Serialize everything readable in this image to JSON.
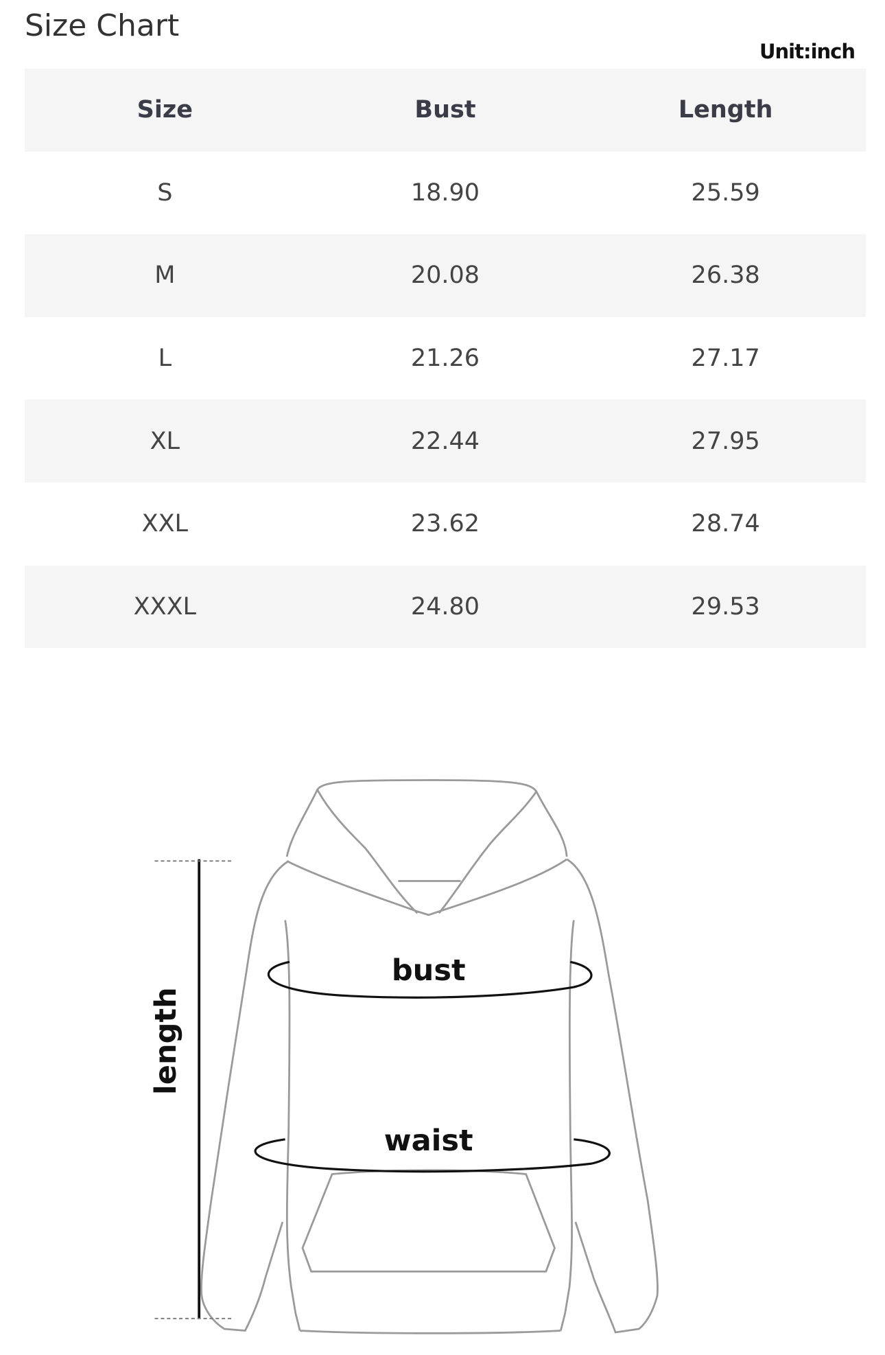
{
  "header": {
    "title": "Size Chart",
    "unit": "Unit:inch"
  },
  "table": {
    "columns": [
      "Size",
      "Bust",
      "Length"
    ],
    "rows": [
      [
        "S",
        "18.90",
        "25.59"
      ],
      [
        "M",
        "20.08",
        "26.38"
      ],
      [
        "L",
        "21.26",
        "27.17"
      ],
      [
        "XL",
        "22.44",
        "27.95"
      ],
      [
        "XXL",
        "23.62",
        "28.74"
      ],
      [
        "XXXL",
        "24.80",
        "29.53"
      ]
    ]
  },
  "diagram": {
    "length_label": "length",
    "bust_label": "bust",
    "waist_label": "waist"
  }
}
